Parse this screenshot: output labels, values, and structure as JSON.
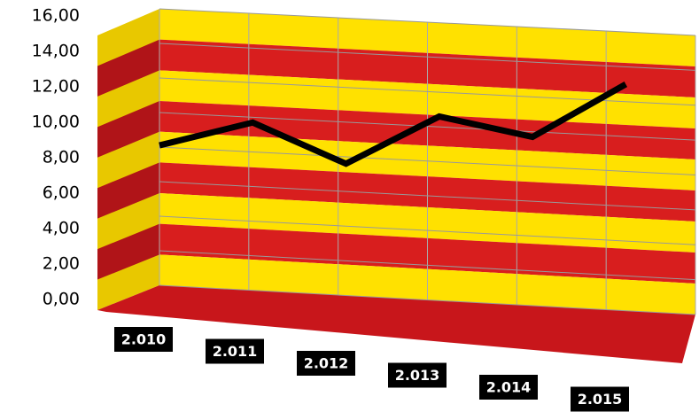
{
  "chart_data": {
    "type": "line",
    "categories": [
      "2.010",
      "2.011",
      "2.012",
      "2.013",
      "2.014",
      "2.015"
    ],
    "values": [
      8.1,
      9.7,
      7.6,
      10.6,
      9.7,
      13.0
    ],
    "color": "#000000",
    "ylim": [
      0,
      16
    ],
    "yticks": [
      {
        "value": 0,
        "label": "0,00"
      },
      {
        "value": 2,
        "label": "2,00"
      },
      {
        "value": 4,
        "label": "4,00"
      },
      {
        "value": 6,
        "label": "6,00"
      },
      {
        "value": 8,
        "label": "8,00"
      },
      {
        "value": 10,
        "label": "10,00"
      },
      {
        "value": 12,
        "label": "12,00"
      },
      {
        "value": 14,
        "label": "14,00"
      },
      {
        "value": 16,
        "label": "16,00"
      }
    ],
    "grid": true
  }
}
